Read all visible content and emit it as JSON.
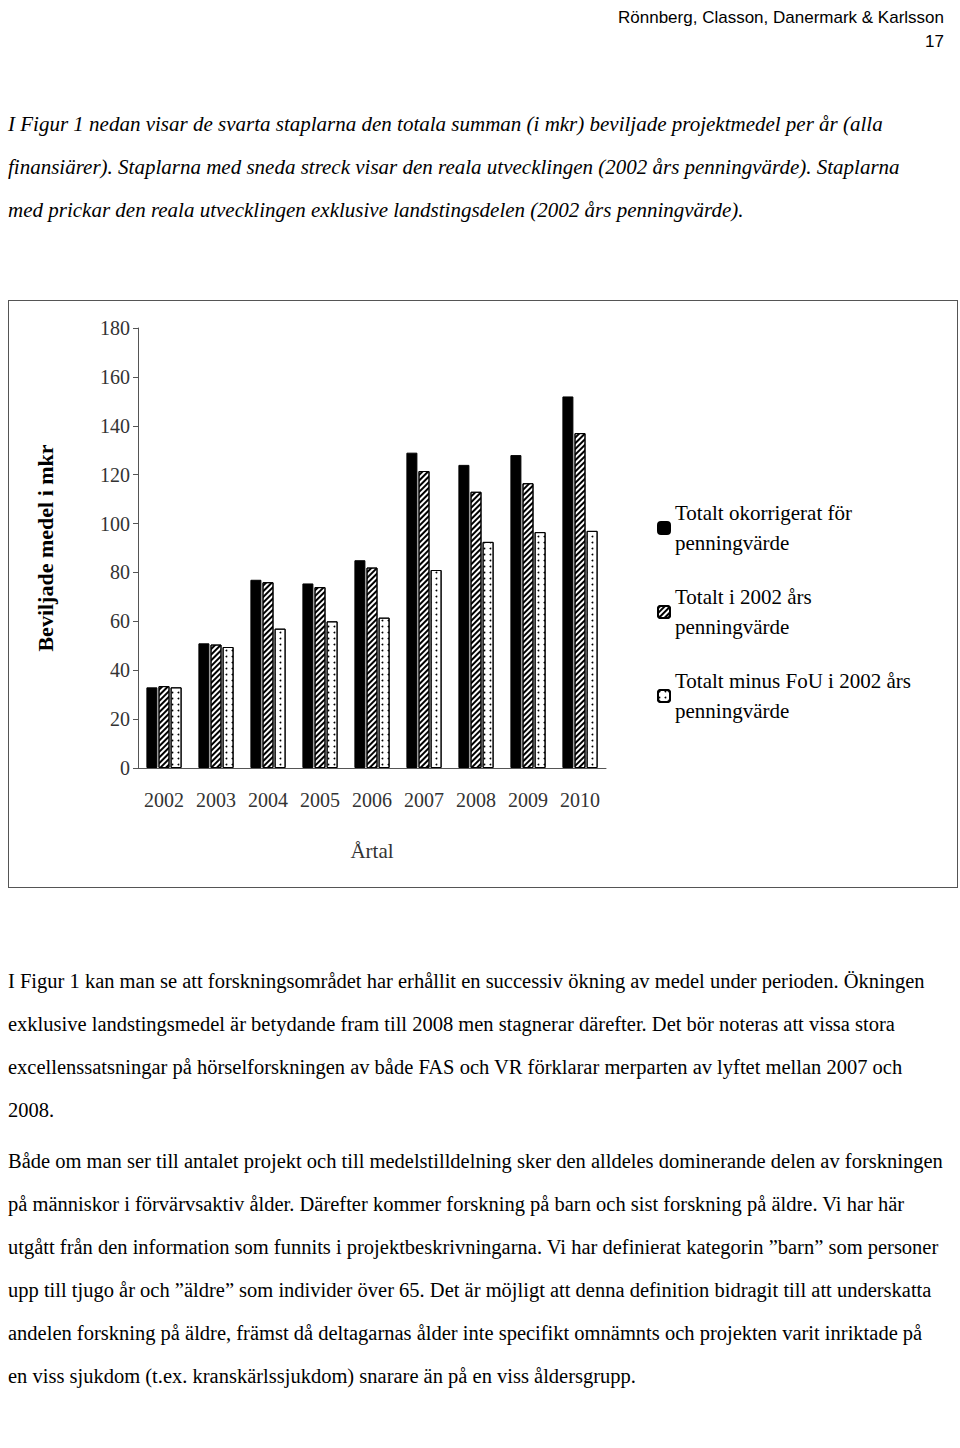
{
  "header": {
    "authors": "Rönnberg, Classon, Danermark & Karlsson",
    "page": "17"
  },
  "intro": "I Figur 1 nedan visar de svarta staplarna den totala summan (i mkr) beviljade projektmedel per år (alla finansiärer). Staplarna med sneda streck visar den reala utvecklingen (2002 års penningvärde). Staplarna med prickar den reala utvecklingen exklusive landstingsdelen (2002 års penningvärde).",
  "chart_data": {
    "type": "bar",
    "categories": [
      "2002",
      "2003",
      "2004",
      "2005",
      "2006",
      "2007",
      "2008",
      "2009",
      "2010"
    ],
    "series": [
      {
        "name": "Totalt okorrigerat för penningvärde",
        "color": "#000000",
        "marker": "solid",
        "values": [
          33,
          51,
          77,
          75.5,
          85,
          129,
          124,
          128,
          152
        ]
      },
      {
        "name": "Totalt i 2002 års penningvärde",
        "color": "#ffffff",
        "marker": "hatch",
        "values": [
          33.5,
          50.5,
          76,
          74,
          82,
          121.5,
          113,
          116.5,
          137
        ]
      },
      {
        "name": "Totalt minus FoU i 2002 års penningvärde",
        "color": "#ffffff",
        "marker": "dots",
        "values": [
          33,
          49.5,
          57,
          60,
          61.5,
          81,
          92.5,
          96.5,
          97
        ]
      }
    ],
    "xlabel": "Årtal",
    "ylabel": "Beviljade medel i mkr",
    "ylim": [
      0,
      180
    ],
    "yticks": [
      0,
      20,
      40,
      60,
      80,
      100,
      120,
      140,
      160,
      180
    ],
    "grid": false,
    "legend": "right"
  },
  "paragraphs": [
    "I Figur 1 kan man se att forskningsområdet har erhållit en successiv ökning av medel under perioden. Ökningen exklusive landstingsmedel är betydande fram till 2008 men stagnerar därefter. Det bör noteras att vissa stora excellenssatsningar på hörselforskningen av både FAS och VR förklarar merparten av lyftet mellan 2007 och 2008.",
    "Både om man ser till antalet projekt och till medelstilldelning sker den alldeles dominerande delen av forskningen på människor i förvärvsaktiv ålder. Därefter kommer forskning på barn och sist forskning på äldre. Vi har här utgått från den information som funnits i projektbeskrivningarna. Vi har definierat kategorin ”barn” som personer upp till tjugo år och ”äldre” som individer över 65. Det är möjligt att denna definition bidragit till att underskatta andelen forskning på äldre, främst då deltagarnas ålder inte specifikt omnämnts och projekten varit inriktade på en viss sjukdom (t.ex. kranskärlssjukdom) snarare än på en viss åldersgrupp."
  ]
}
